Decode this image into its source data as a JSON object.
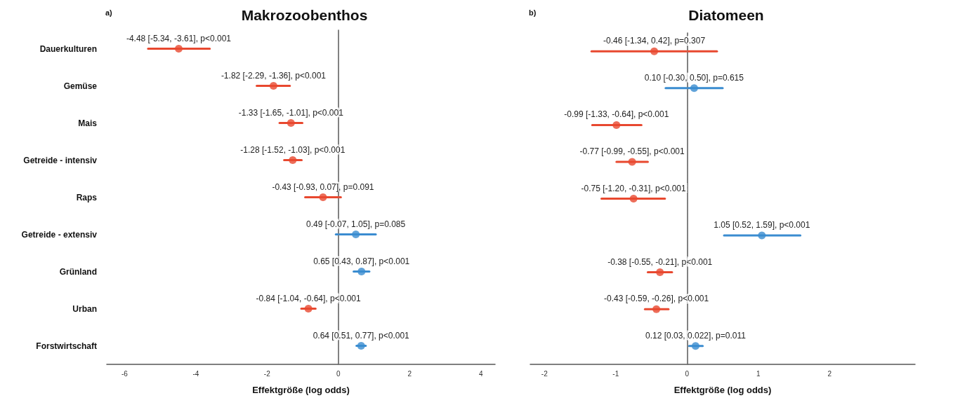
{
  "chart_data": [
    {
      "type": "scatter",
      "orientation": "horizontal",
      "title": "Makrozoobenthos",
      "xlabel": "Effektgröße (log odds)",
      "annotations": [
        "a)"
      ],
      "categories": [
        "Dauerkulturen",
        "Gemüse",
        "Mais",
        "Getreide - intensiv",
        "Raps",
        "Getreide - extensiv",
        "Grünland",
        "Urban",
        "Forstwirtschaft"
      ],
      "values": [
        -4.48,
        -1.82,
        -1.33,
        -1.28,
        -0.43,
        0.49,
        0.65,
        -0.84,
        0.64
      ],
      "errors": [
        [
          -5.34,
          -3.61
        ],
        [
          -2.29,
          -1.36
        ],
        [
          -1.65,
          -1.01
        ],
        [
          -1.52,
          -1.03
        ],
        [
          -0.93,
          0.07
        ],
        [
          -0.07,
          1.05
        ],
        [
          0.43,
          0.87
        ],
        [
          -1.04,
          -0.64
        ],
        [
          0.51,
          0.77
        ]
      ],
      "colors": [
        "#e8482f",
        "#e8482f",
        "#e8482f",
        "#e8482f",
        "#e8482f",
        "#3a8cd0",
        "#3a8cd0",
        "#e8482f",
        "#3a8cd0"
      ],
      "value_labels": [
        "-4.48 [-5.34, -3.61], p<0.001",
        "-1.82 [-2.29, -1.36], p<0.001",
        "-1.33 [-1.65, -1.01], p<0.001",
        "-1.28 [-1.52, -1.03], p<0.001",
        "-0.43 [-0.93, 0.07], p=0.091",
        "0.49 [-0.07, 1.05], p=0.085",
        "0.65 [0.43, 0.87], p<0.001",
        "-0.84 [-1.04, -0.64], p<0.001",
        "0.64 [0.51, 0.77], p<0.001"
      ],
      "xlim": [
        -6.5,
        4.4
      ],
      "xticks": [
        -6,
        -4,
        -2,
        0,
        2,
        4
      ],
      "marker": "circle",
      "ref_lines": [
        {
          "axis": "x",
          "value": 0,
          "color": "#888888",
          "line_style": "dotted"
        }
      ]
    },
    {
      "type": "scatter",
      "orientation": "horizontal",
      "title": "Diatomeen",
      "xlabel": "Effektgröße (log odds)",
      "annotations": [
        "b)"
      ],
      "categories": [
        null,
        null,
        null,
        null,
        null,
        null,
        null,
        null,
        null
      ],
      "values": [
        -0.46,
        0.1,
        -0.99,
        -0.77,
        -0.75,
        1.05,
        -0.38,
        -0.43,
        0.12
      ],
      "errors": [
        [
          -1.34,
          0.42
        ],
        [
          -0.3,
          0.5
        ],
        [
          -1.33,
          -0.64
        ],
        [
          -0.99,
          -0.55
        ],
        [
          -1.2,
          -0.31
        ],
        [
          0.52,
          1.59
        ],
        [
          -0.55,
          -0.21
        ],
        [
          -0.59,
          -0.26
        ],
        [
          0.03,
          0.22
        ]
      ],
      "colors": [
        "#e8482f",
        "#3a8cd0",
        "#e8482f",
        "#e8482f",
        "#e8482f",
        "#3a8cd0",
        "#e8482f",
        "#e8482f",
        "#3a8cd0"
      ],
      "value_labels": [
        "-0.46 [-1.34, 0.42], p=0.307",
        "0.10 [-0.30, 0.50], p=0.615",
        "-0.99 [-1.33, -0.64], p<0.001",
        "-0.77 [-0.99, -0.55], p<0.001",
        "-0.75 [-1.20, -0.31], p<0.001",
        "1.05 [0.52, 1.59], p<0.001",
        "-0.38 [-0.55, -0.21], p<0.001",
        "-0.43 [-0.59, -0.26], p<0.001",
        "0.12 [0.03, 0.022], p=0.011"
      ],
      "xlim": [
        -2.2,
        3.2
      ],
      "xticks": [
        -2,
        -1,
        0,
        1,
        2
      ],
      "marker": "circle",
      "ref_lines": [
        {
          "axis": "x",
          "value": 0,
          "color": "#888888",
          "line_style": "dotted"
        }
      ]
    }
  ]
}
